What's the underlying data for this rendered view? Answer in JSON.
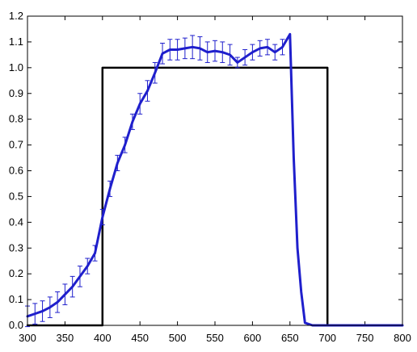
{
  "chart_data": {
    "type": "line",
    "title": "",
    "xlabel": "",
    "ylabel": "",
    "xlim": [
      300,
      800
    ],
    "ylim": [
      0,
      1.2
    ],
    "grid": false,
    "x_ticks": [
      "300",
      "350",
      "400",
      "450",
      "500",
      "550",
      "600",
      "650",
      "700",
      "750",
      "800"
    ],
    "y_ticks": [
      "0.0",
      "0.1",
      "0.2",
      "0.3",
      "0.4",
      "0.5",
      "0.6",
      "0.7",
      "0.8",
      "0.9",
      "1.0",
      "1.1",
      "1.2"
    ],
    "series": [
      {
        "style": "black-step",
        "color": "#000000",
        "x": [
          300,
          400,
          400,
          700,
          700,
          800
        ],
        "y": [
          0,
          0,
          1.0,
          1.0,
          0,
          0
        ]
      },
      {
        "style": "blue-errorbar-line",
        "color": "#1f1fcc",
        "x": [
          300,
          310,
          320,
          330,
          340,
          350,
          360,
          370,
          380,
          390,
          400,
          410,
          420,
          430,
          440,
          450,
          460,
          470,
          480,
          490,
          500,
          510,
          520,
          530,
          540,
          550,
          560,
          570,
          580,
          590,
          600,
          610,
          620,
          630,
          640,
          650,
          655,
          660,
          665,
          670,
          680,
          700,
          750,
          800
        ],
        "y": [
          0.035,
          0.045,
          0.055,
          0.07,
          0.09,
          0.12,
          0.15,
          0.19,
          0.23,
          0.28,
          0.42,
          0.53,
          0.63,
          0.7,
          0.79,
          0.86,
          0.91,
          0.98,
          1.055,
          1.07,
          1.07,
          1.075,
          1.08,
          1.075,
          1.06,
          1.065,
          1.06,
          1.05,
          1.02,
          1.04,
          1.06,
          1.075,
          1.08,
          1.06,
          1.08,
          1.13,
          0.65,
          0.3,
          0.13,
          0.01,
          0.0,
          0.0,
          0.0,
          0.0
        ],
        "err": [
          0.04,
          0.04,
          0.04,
          0.04,
          0.04,
          0.04,
          0.04,
          0.04,
          0.03,
          0.03,
          0.03,
          0.03,
          0.03,
          0.03,
          0.03,
          0.04,
          0.04,
          0.04,
          0.04,
          0.04,
          0.04,
          0.04,
          0.045,
          0.045,
          0.04,
          0.04,
          0.04,
          0.04,
          0.02,
          0.03,
          0.03,
          0.03,
          0.03,
          0.03,
          0.03,
          0.0,
          0.0,
          0.0,
          0.0,
          0.0,
          0.0,
          0.0,
          0.0,
          0.0
        ]
      }
    ]
  }
}
